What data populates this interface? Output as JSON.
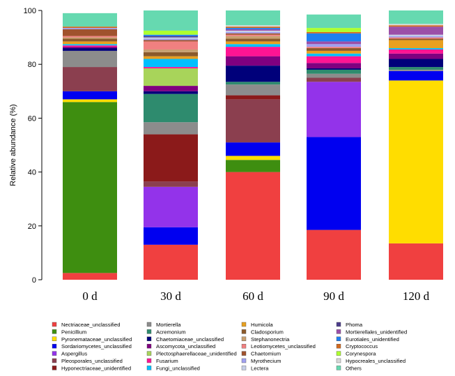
{
  "chart_data": {
    "type": "bar",
    "stacked": true,
    "title": "",
    "xlabel": "",
    "ylabel": "Relative abundance (%)",
    "ylim": [
      0,
      100
    ],
    "yticks": [
      0,
      20,
      40,
      60,
      80,
      100
    ],
    "categories": [
      "0 d",
      "30 d",
      "60 d",
      "90 d",
      "120 d"
    ],
    "legend_position": "bottom",
    "series": [
      {
        "name": "Nectriaceae_unclassified",
        "color": "#f04040",
        "values": [
          2.5,
          13,
          40,
          18.5,
          13.5
        ]
      },
      {
        "name": "Penicillium",
        "color": "#3e8e10",
        "values": [
          63.5,
          0,
          4.5,
          0,
          0
        ]
      },
      {
        "name": "Pyronemataceae_unclassified",
        "color": "#ffdd00",
        "values": [
          1,
          0,
          1.5,
          0,
          60.5
        ]
      },
      {
        "name": "Sordariomycetes_unclassified",
        "color": "#0000f0",
        "values": [
          3,
          6.5,
          5,
          34.5,
          3.5
        ]
      },
      {
        "name": "Aspergillus",
        "color": "#9333ea",
        "values": [
          0,
          15,
          0,
          20.5,
          0
        ]
      },
      {
        "name": "Pleosporales_unclassified",
        "color": "#8b3f4f",
        "values": [
          9,
          2,
          16,
          1.5,
          0
        ]
      },
      {
        "name": "Hyponectriaceae_unidentified",
        "color": "#8b1a1a",
        "values": [
          0,
          17.5,
          1.5,
          0,
          0
        ]
      },
      {
        "name": "Mortierella",
        "color": "#8c8c8c",
        "values": [
          6,
          4.5,
          4,
          1.5,
          0.5
        ]
      },
      {
        "name": "Acremonium",
        "color": "#2e8b6e",
        "values": [
          0,
          10.5,
          1,
          1.5,
          1
        ]
      },
      {
        "name": "Chaetomiaceae_unclassified",
        "color": "#00007a",
        "values": [
          1,
          1,
          6,
          0.5,
          3
        ]
      },
      {
        "name": "Ascomycota_unclassified",
        "color": "#800080",
        "values": [
          0.5,
          2,
          3.5,
          2,
          2
        ]
      },
      {
        "name": "Plectosphaerellaceae_unidentified",
        "color": "#a8d45a",
        "values": [
          0,
          6.5,
          0,
          0,
          0
        ]
      },
      {
        "name": "Fusarium",
        "color": "#ff1493",
        "values": [
          0.5,
          0.5,
          3.5,
          2.5,
          1.5
        ]
      },
      {
        "name": "Fungi_unclassified",
        "color": "#00bfff",
        "values": [
          0.5,
          3,
          1,
          1,
          0.5
        ]
      },
      {
        "name": "Humicola",
        "color": "#e8a020",
        "values": [
          1,
          1,
          1,
          1,
          3
        ]
      },
      {
        "name": "Cladosporium",
        "color": "#8b5a2b",
        "values": [
          1,
          1.5,
          1,
          1,
          0.5
        ]
      },
      {
        "name": "Stephanonectria",
        "color": "#c8a070",
        "values": [
          0.5,
          1,
          1,
          0,
          0
        ]
      },
      {
        "name": "Leotiomycetes_unclassified",
        "color": "#f08080",
        "values": [
          0.5,
          3,
          0.5,
          0.5,
          0.5
        ]
      },
      {
        "name": "Chaetomium",
        "color": "#a0522d",
        "values": [
          2.5,
          0.5,
          0.5,
          0,
          0
        ]
      },
      {
        "name": "Myrothecium",
        "color": "#a0a0f0",
        "values": [
          0.5,
          0.5,
          0.5,
          1,
          0.5
        ]
      },
      {
        "name": "Lectera",
        "color": "#c6cfe6",
        "values": [
          0,
          0.5,
          0.5,
          0,
          0.5
        ]
      },
      {
        "name": "Phoma",
        "color": "#4b3c8c",
        "values": [
          0,
          0.5,
          0,
          0,
          0
        ]
      },
      {
        "name": "Mortierellales_unidentified",
        "color": "#9b4fa8",
        "values": [
          0,
          0,
          0.5,
          1,
          3
        ]
      },
      {
        "name": "Eurotiales_unidentified",
        "color": "#1e7ff0",
        "values": [
          0,
          0.5,
          0.5,
          3,
          0
        ]
      },
      {
        "name": "Cryptococcus",
        "color": "#d2691e",
        "values": [
          0.5,
          0,
          0.5,
          0.5,
          0.5
        ]
      },
      {
        "name": "Corynespora",
        "color": "#adff2f",
        "values": [
          0,
          1.5,
          0,
          1.5,
          0
        ]
      },
      {
        "name": "Hypocreales_unclassified",
        "color": "#d8d8d8",
        "values": [
          0,
          0,
          0.5,
          0,
          0.5
        ]
      },
      {
        "name": "Others",
        "color": "#66d9b0",
        "values": [
          5,
          7.5,
          5.5,
          5,
          5
        ]
      }
    ]
  }
}
